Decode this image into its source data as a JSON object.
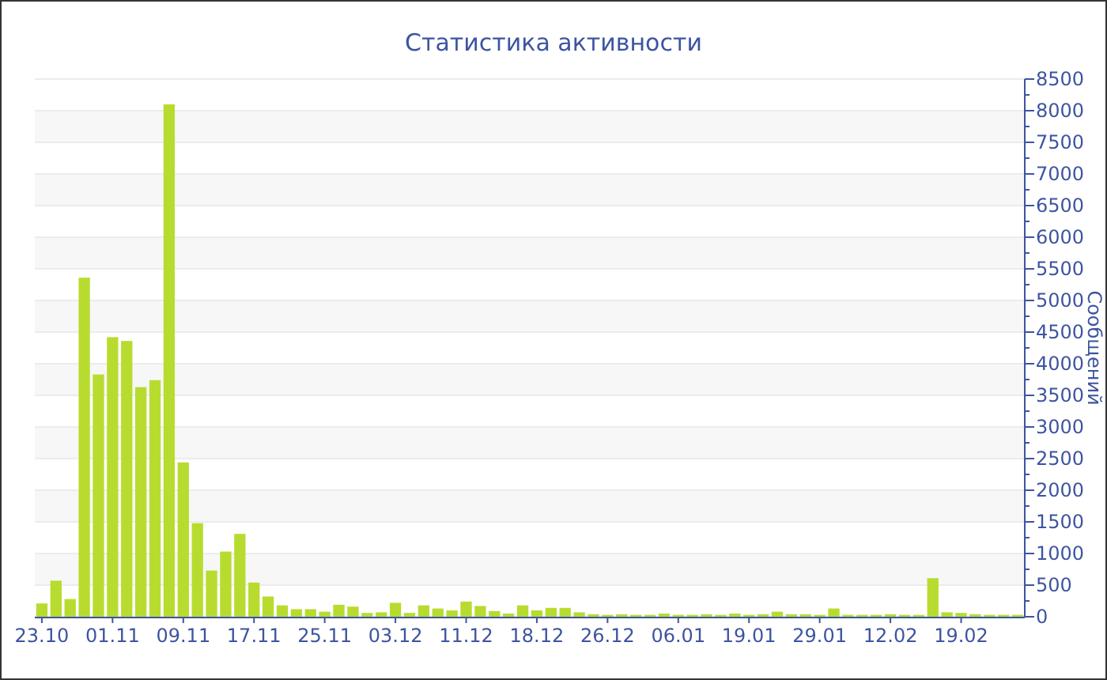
{
  "chart_data": {
    "type": "bar",
    "title": "Статистика активности",
    "ylabel": "Сообщений",
    "categories": [
      "23.10",
      null,
      null,
      null,
      null,
      "01.11",
      null,
      null,
      null,
      null,
      "09.11",
      null,
      null,
      null,
      null,
      "17.11",
      null,
      null,
      null,
      null,
      "25.11",
      null,
      null,
      null,
      null,
      "03.12",
      null,
      null,
      null,
      null,
      "11.12",
      null,
      null,
      null,
      null,
      "18.12",
      null,
      null,
      null,
      null,
      "26.12",
      null,
      null,
      null,
      null,
      "06.01",
      null,
      null,
      null,
      null,
      "19.01",
      null,
      null,
      null,
      null,
      "29.01",
      null,
      null,
      null,
      null,
      "12.02",
      null,
      null,
      null,
      null,
      "19.02",
      null,
      null,
      null,
      null
    ],
    "values": [
      210,
      570,
      280,
      5360,
      3830,
      4420,
      4360,
      3630,
      3740,
      8100,
      2440,
      1480,
      730,
      1030,
      1310,
      540,
      320,
      180,
      120,
      120,
      80,
      190,
      160,
      60,
      70,
      220,
      60,
      180,
      130,
      100,
      240,
      170,
      90,
      50,
      180,
      100,
      140,
      140,
      70,
      40,
      30,
      40,
      30,
      30,
      50,
      30,
      30,
      40,
      30,
      50,
      30,
      40,
      80,
      40,
      40,
      30,
      130,
      30,
      30,
      30,
      40,
      30,
      30,
      610,
      70,
      60,
      40,
      30,
      30,
      30
    ],
    "color": "#b7dc2f",
    "ylim": [
      0,
      8500
    ],
    "yticks": [
      0,
      500,
      1000,
      1500,
      2000,
      2500,
      3000,
      3500,
      4000,
      4500,
      5000,
      5500,
      6000,
      6500,
      7000,
      7500,
      8000,
      8500
    ],
    "grid": "y"
  }
}
